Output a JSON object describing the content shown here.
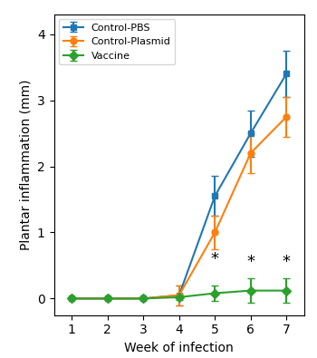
{
  "chart_data": {
    "type": "line",
    "x": [
      1,
      2,
      3,
      4,
      5,
      6,
      7
    ],
    "xlabel": "Week of infection",
    "ylabel": "Plantar inflammation (mm)",
    "xlim": [
      0.5,
      7.5
    ],
    "xticks": [
      1,
      2,
      3,
      4,
      5,
      6,
      7
    ],
    "ylim": [
      -0.25,
      4.3
    ],
    "yticks": [
      0,
      1,
      2,
      3,
      4
    ],
    "grid": false,
    "legend": "upper left",
    "series": [
      {
        "name": "Control-PBS",
        "marker": "square",
        "values": [
          0.0,
          0.0,
          0.0,
          0.05,
          1.55,
          2.5,
          3.4
        ],
        "errors": [
          0.0,
          0.0,
          0.0,
          0.15,
          0.3,
          0.35,
          0.35
        ]
      },
      {
        "name": "Control-Plasmid",
        "marker": "circle",
        "values": [
          0.0,
          0.0,
          0.0,
          0.05,
          1.0,
          2.2,
          2.75
        ],
        "errors": [
          0.0,
          0.0,
          0.0,
          0.15,
          0.25,
          0.3,
          0.3
        ]
      },
      {
        "name": "Vaccine",
        "marker": "diamond",
        "values": [
          0.0,
          0.0,
          0.0,
          0.02,
          0.08,
          0.12,
          0.12
        ],
        "errors": [
          0.0,
          0.0,
          0.0,
          0.04,
          0.12,
          0.18,
          0.18
        ]
      }
    ],
    "annotations": [
      {
        "text": "*",
        "x": 5,
        "y": 0.6
      },
      {
        "text": "*",
        "x": 6,
        "y": 0.55
      },
      {
        "text": "*",
        "x": 7,
        "y": 0.55
      }
    ]
  }
}
